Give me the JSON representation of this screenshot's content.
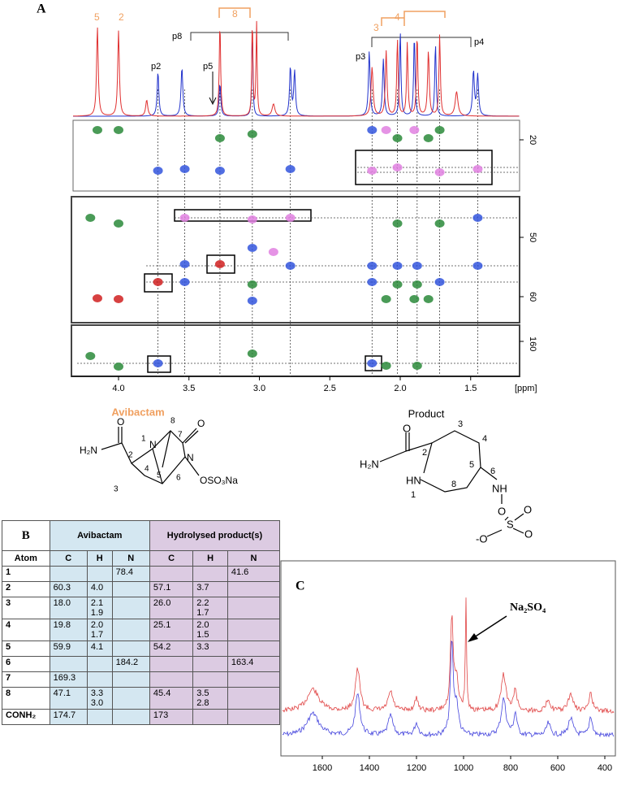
{
  "panel_a": {
    "label": "A",
    "peak_labels": [
      "5",
      "2",
      "8",
      "3",
      "4"
    ],
    "proton_labels": [
      "p8",
      "p2",
      "p5",
      "p3",
      "p4"
    ],
    "ppm_ticks": [
      "4.0",
      "3.5",
      "3.0",
      "2.5",
      "2.0",
      "1.5"
    ],
    "ppm_unit": "[ppm]",
    "carbon_ticks": [
      "20",
      "50",
      "60",
      "160"
    ]
  },
  "structures": {
    "avibactam": {
      "title": "Avibactam",
      "labels": [
        "H₂N",
        "O",
        "O",
        "N",
        "N",
        "OSO₃Na",
        "1",
        "2",
        "3",
        "4",
        "5",
        "6",
        "7",
        "8"
      ]
    },
    "product": {
      "title": "Product",
      "labels": [
        "H₂N",
        "O",
        "HN",
        "NH",
        "O",
        "S",
        "O",
        "O",
        "-O",
        "1",
        "2",
        "3",
        "4",
        "5",
        "6",
        "8"
      ]
    }
  },
  "panel_b": {
    "label": "B",
    "groups": [
      "Avibactam",
      "Hydrolysed product(s)"
    ],
    "columns": [
      "Atom",
      "C",
      "H",
      "N",
      "C",
      "H",
      "N"
    ],
    "rows": [
      [
        "1",
        null,
        null,
        "78.4",
        null,
        null,
        "41.6"
      ],
      [
        "2",
        "60.3",
        "4.0",
        null,
        "57.1",
        "3.7",
        null
      ],
      [
        "3",
        "18.0",
        [
          "2.1",
          "1.9"
        ],
        null,
        "26.0",
        [
          "2.2",
          "1.7"
        ],
        null
      ],
      [
        "4",
        "19.8",
        [
          "2.0",
          "1.7"
        ],
        null,
        "25.1",
        [
          "2.0",
          "1.5"
        ],
        null
      ],
      [
        "5",
        "59.9",
        "4.1",
        null,
        "54.2",
        "3.3",
        null
      ],
      [
        "6",
        null,
        null,
        "184.2",
        null,
        null,
        "163.4"
      ],
      [
        "7",
        "169.3",
        null,
        null,
        null,
        null,
        null
      ],
      [
        "8",
        "47.1",
        [
          "3.3",
          "3.0"
        ],
        null,
        "45.4",
        [
          "3.5",
          "2.8"
        ],
        null
      ],
      [
        "CONH₂",
        "174.7",
        null,
        null,
        "173",
        null,
        null
      ]
    ]
  },
  "panel_c": {
    "label": "C",
    "annotation": "Na₂SO₄",
    "ticks": [
      "1600",
      "1400",
      "1200",
      "1000",
      "800",
      "600",
      "400"
    ]
  }
}
